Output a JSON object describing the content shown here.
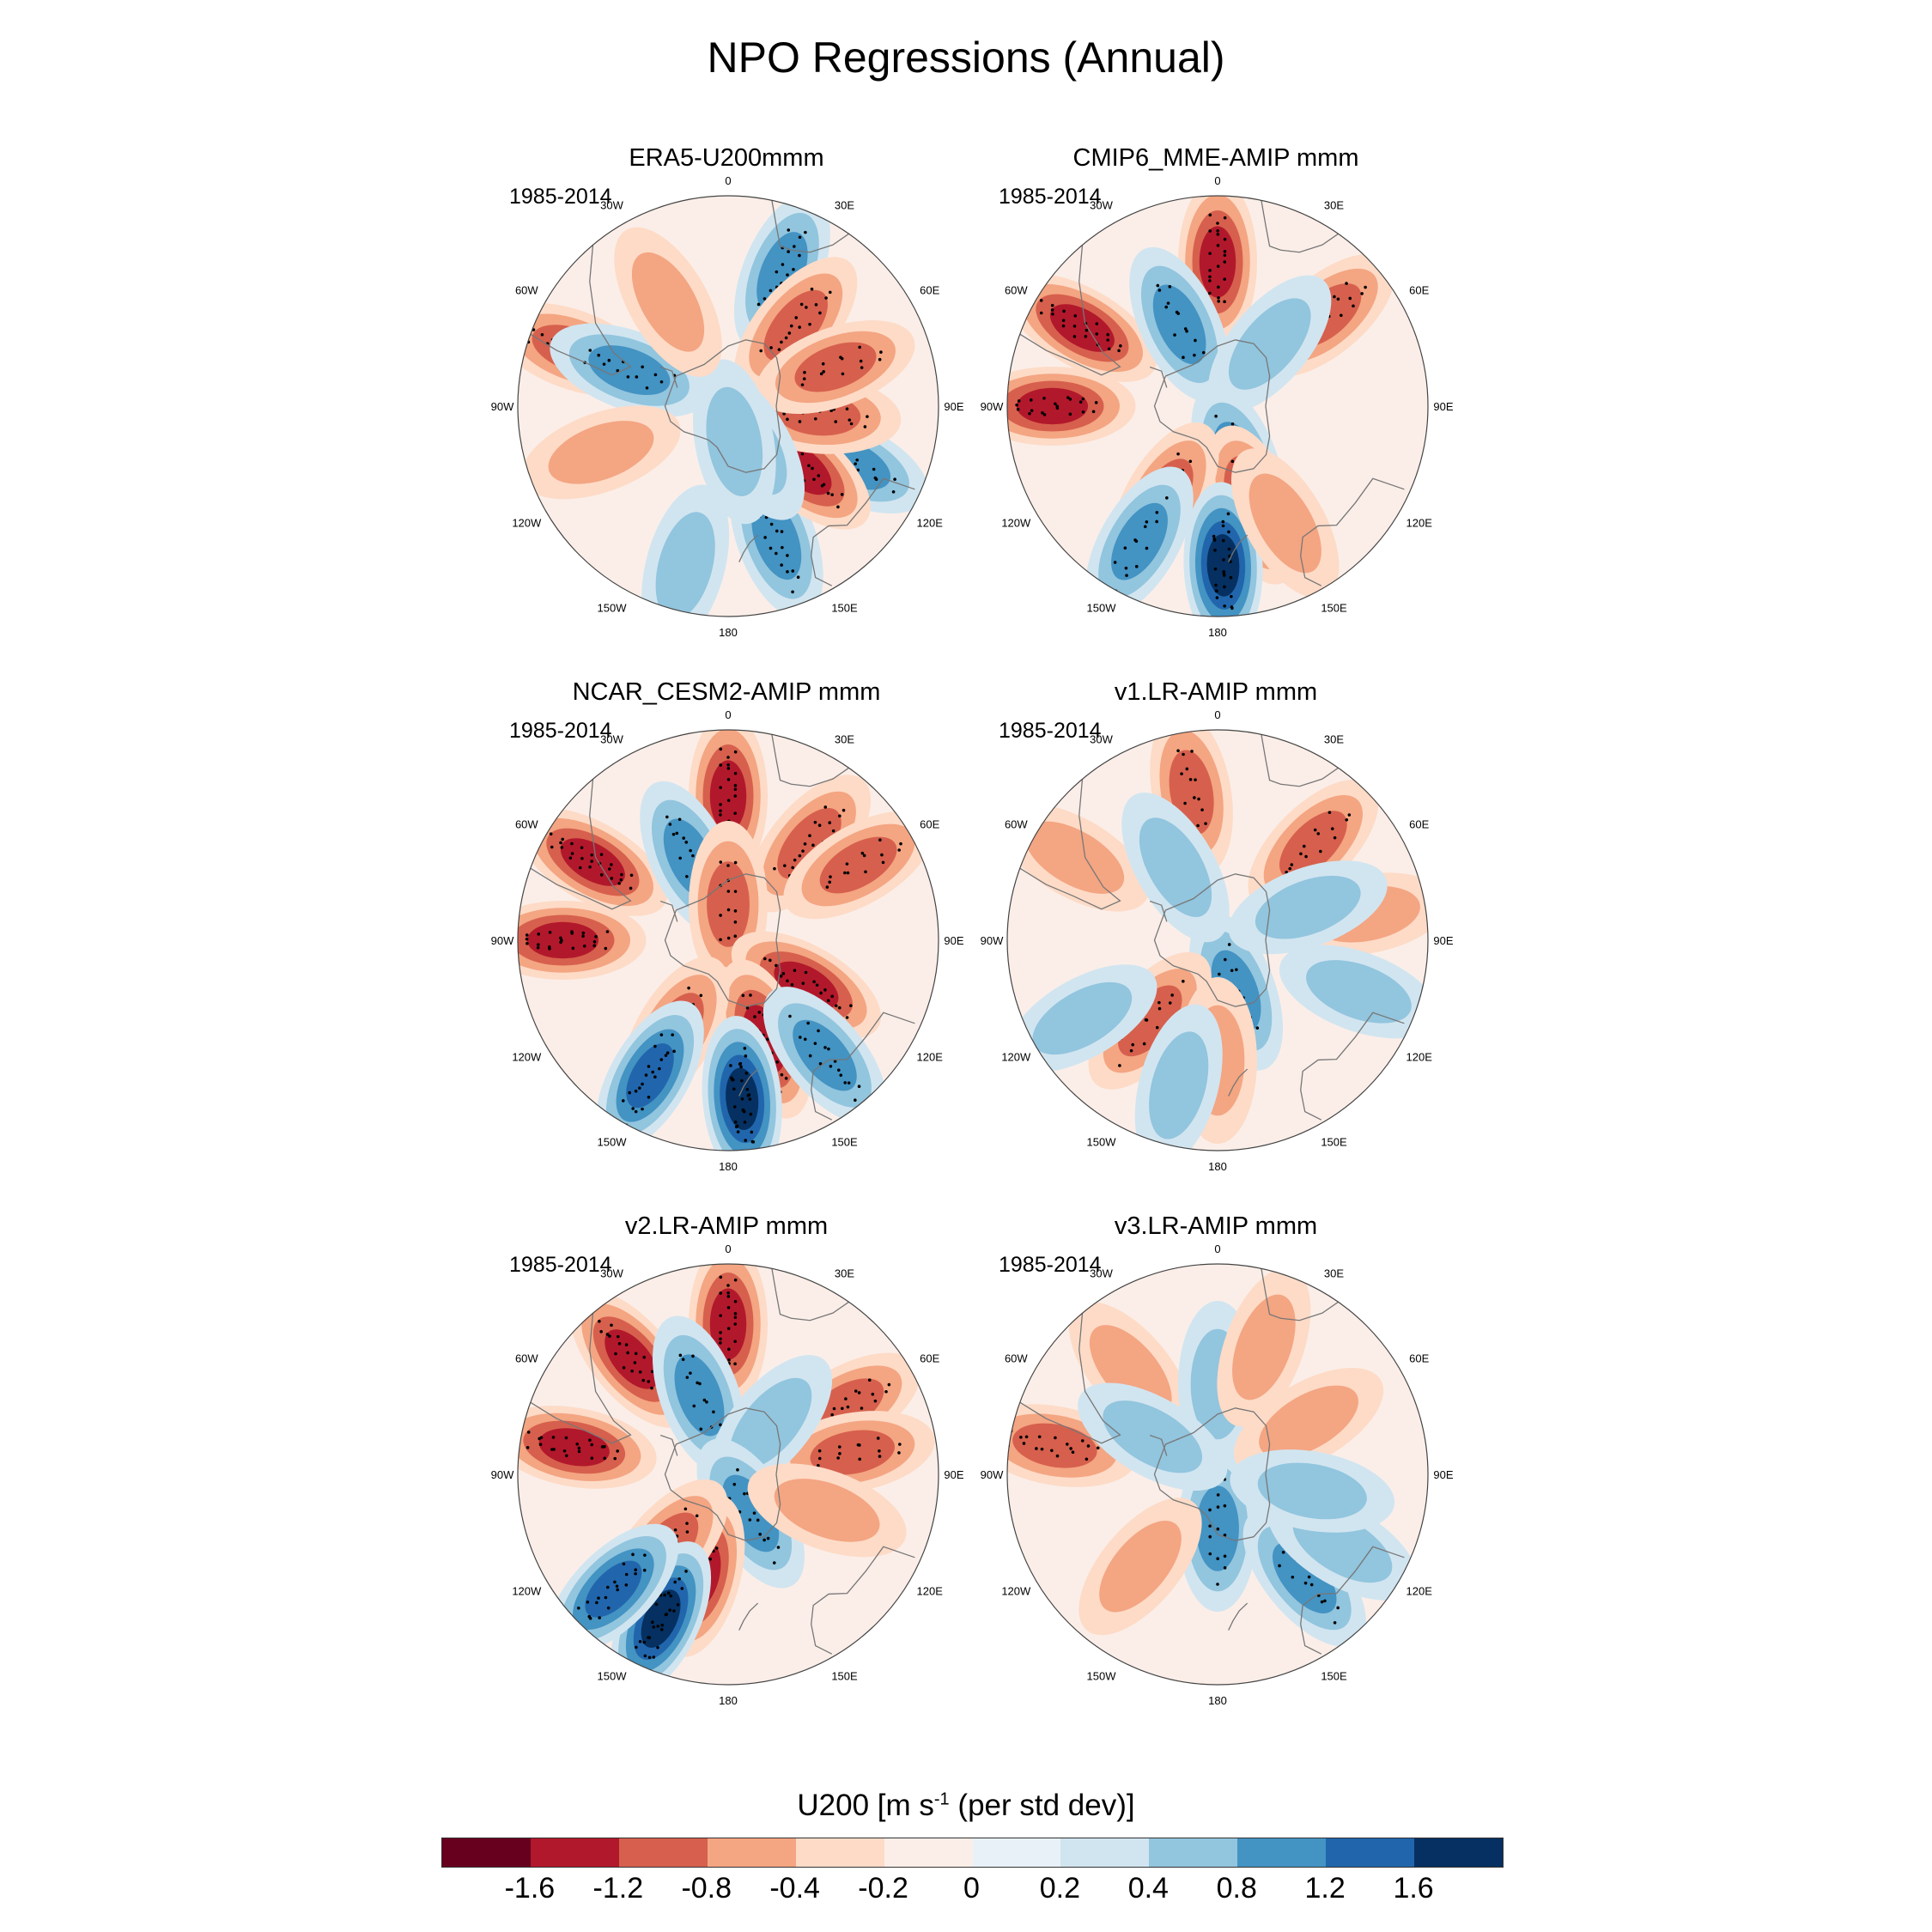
{
  "title": "NPO Regressions (Annual)",
  "chart_data": {
    "type": "heatmap",
    "projection": "south-polar-stereographic",
    "variable": "U200",
    "panels": [
      {
        "title": "ERA5-U200mmm",
        "period": "1985-2014",
        "blobs": [
          {
            "v": 1.0,
            "lon": 22,
            "lat": -42
          },
          {
            "v": -1.0,
            "lon": 40,
            "lat": -55
          },
          {
            "v": 1.0,
            "lon": 160,
            "lat": -43
          },
          {
            "v": 0.8,
            "lon": 115,
            "lat": -45
          },
          {
            "v": -1.2,
            "lon": 130,
            "lat": -58
          },
          {
            "v": -1.0,
            "lon": 95,
            "lat": -60
          },
          {
            "v": -0.8,
            "lon": 70,
            "lat": -52
          },
          {
            "v": 0.6,
            "lon": 150,
            "lat": -75
          },
          {
            "v": 0.5,
            "lon": 170,
            "lat": -78
          },
          {
            "v": -0.8,
            "lon": -70,
            "lat": -35
          },
          {
            "v": 0.8,
            "lon": -70,
            "lat": -55
          },
          {
            "v": -0.6,
            "lon": -110,
            "lat": -45
          },
          {
            "v": 0.6,
            "lon": -165,
            "lat": -35
          },
          {
            "v": -0.4,
            "lon": -30,
            "lat": -50
          }
        ]
      },
      {
        "title": "CMIP6_MME-AMIP  mmm",
        "period": "1985-2014",
        "blobs": [
          {
            "v": -1.2,
            "lon": 0,
            "lat": -42
          },
          {
            "v": -1.2,
            "lon": -60,
            "lat": -38
          },
          {
            "v": -1.2,
            "lon": -90,
            "lat": -35
          },
          {
            "v": -1.0,
            "lon": 50,
            "lat": -43
          },
          {
            "v": 0.8,
            "lon": -25,
            "lat": -60
          },
          {
            "v": 0.6,
            "lon": 40,
            "lat": -63
          },
          {
            "v": 1.0,
            "lon": 160,
            "lat": -70
          },
          {
            "v": -1.2,
            "lon": 160,
            "lat": -55
          },
          {
            "v": -1.0,
            "lon": -150,
            "lat": -55
          },
          {
            "v": 1.6,
            "lon": 178,
            "lat": -37
          },
          {
            "v": 0.8,
            "lon": -150,
            "lat": -38
          },
          {
            "v": -0.6,
            "lon": 150,
            "lat": -45
          }
        ]
      },
      {
        "title": "NCAR_CESM2-AMIP  mmm",
        "period": "1985-2014",
        "blobs": [
          {
            "v": -1.2,
            "lon": 0,
            "lat": -42
          },
          {
            "v": -1.4,
            "lon": -60,
            "lat": -38
          },
          {
            "v": -1.4,
            "lon": -90,
            "lat": -35
          },
          {
            "v": -1.0,
            "lon": 40,
            "lat": -48
          },
          {
            "v": -0.8,
            "lon": 60,
            "lat": -40
          },
          {
            "v": 1.0,
            "lon": -25,
            "lat": -60
          },
          {
            "v": 0.8,
            "lon": 150,
            "lat": -72
          },
          {
            "v": -0.8,
            "lon": 0,
            "lat": -78
          },
          {
            "v": -1.2,
            "lon": 120,
            "lat": -60
          },
          {
            "v": -1.2,
            "lon": 160,
            "lat": -55
          },
          {
            "v": -1.0,
            "lon": -150,
            "lat": -55
          },
          {
            "v": 1.8,
            "lon": 175,
            "lat": -37
          },
          {
            "v": 1.2,
            "lon": -150,
            "lat": -38
          },
          {
            "v": 1.0,
            "lon": 140,
            "lat": -40
          }
        ]
      },
      {
        "title": "v1.LR-AMIP  mmm",
        "period": "1985-2014",
        "blobs": [
          {
            "v": -0.8,
            "lon": -10,
            "lat": -40
          },
          {
            "v": -0.6,
            "lon": -60,
            "lat": -35
          },
          {
            "v": -0.8,
            "lon": 45,
            "lat": -45
          },
          {
            "v": -0.6,
            "lon": 80,
            "lat": -40
          },
          {
            "v": 0.8,
            "lon": 160,
            "lat": -72
          },
          {
            "v": -0.8,
            "lon": -140,
            "lat": -55
          },
          {
            "v": 0.6,
            "lon": -120,
            "lat": -38
          },
          {
            "v": 0.6,
            "lon": 110,
            "lat": -40
          },
          {
            "v": 0.5,
            "lon": 70,
            "lat": -58
          },
          {
            "v": 0.4,
            "lon": -30,
            "lat": -62
          },
          {
            "v": -0.4,
            "lon": 180,
            "lat": -50
          },
          {
            "v": 0.4,
            "lon": -165,
            "lat": -40
          }
        ]
      },
      {
        "title": "v2.LR-AMIP  mmm",
        "period": "1985-2014",
        "blobs": [
          {
            "v": -1.2,
            "lon": 0,
            "lat": -40
          },
          {
            "v": -1.2,
            "lon": -40,
            "lat": -40
          },
          {
            "v": -1.2,
            "lon": -80,
            "lat": -38
          },
          {
            "v": -1.0,
            "lon": 60,
            "lat": -45
          },
          {
            "v": -0.8,
            "lon": 80,
            "lat": -48
          },
          {
            "v": 0.8,
            "lon": -20,
            "lat": -62
          },
          {
            "v": 0.6,
            "lon": 40,
            "lat": -68
          },
          {
            "v": 0.8,
            "lon": 150,
            "lat": -75
          },
          {
            "v": -1.2,
            "lon": -165,
            "lat": -55
          },
          {
            "v": -1.0,
            "lon": -140,
            "lat": -58
          },
          {
            "v": 1.6,
            "lon": -155,
            "lat": -37
          },
          {
            "v": 1.2,
            "lon": -135,
            "lat": -36
          },
          {
            "v": -0.6,
            "lon": 110,
            "lat": -55
          }
        ]
      },
      {
        "title": "v3.LR-AMIP  mmm",
        "period": "1985-2014",
        "blobs": [
          {
            "v": -1.0,
            "lon": -80,
            "lat": -35
          },
          {
            "v": -0.6,
            "lon": -40,
            "lat": -45
          },
          {
            "v": 0.8,
            "lon": 180,
            "lat": -72
          },
          {
            "v": 0.8,
            "lon": 140,
            "lat": -45
          },
          {
            "v": 0.6,
            "lon": 120,
            "lat": -42
          },
          {
            "v": 0.5,
            "lon": 0,
            "lat": -60
          },
          {
            "v": 0.5,
            "lon": -60,
            "lat": -65
          },
          {
            "v": -0.6,
            "lon": -140,
            "lat": -50
          },
          {
            "v": -0.4,
            "lon": 60,
            "lat": -55
          },
          {
            "v": -0.4,
            "lon": 20,
            "lat": -45
          },
          {
            "v": 0.4,
            "lon": 100,
            "lat": -58
          }
        ]
      }
    ],
    "lon_labels": [
      "0",
      "30E",
      "60E",
      "90E",
      "120E",
      "150E",
      "180",
      "150W",
      "120W",
      "90W",
      "60W",
      "30W"
    ],
    "colorbar": {
      "title": "U200 [m s",
      "title_sup": "-1",
      "title_suffix": " (per std dev)]",
      "levels": [
        -1.6,
        -1.2,
        -0.8,
        -0.4,
        -0.2,
        0,
        0.2,
        0.4,
        0.8,
        1.2,
        1.6
      ],
      "labels": [
        "-1.6",
        "-1.2",
        "-0.8",
        "-0.4",
        "-0.2",
        "0",
        "0.2",
        "0.4",
        "0.8",
        "1.2",
        "1.6"
      ],
      "colors": [
        "#67001f",
        "#b2182b",
        "#d6604d",
        "#f4a582",
        "#fddbc7",
        "#fbeee8",
        "#e8f1f7",
        "#d1e5f0",
        "#92c5de",
        "#4393c3",
        "#2166ac",
        "#053061"
      ]
    }
  }
}
